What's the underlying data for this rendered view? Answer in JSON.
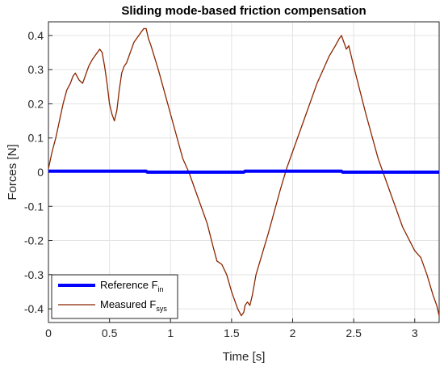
{
  "chart_data": {
    "type": "line",
    "title": "Sliding mode-based friction compensation",
    "xlabel": "Time [s]",
    "ylabel": "Forces [N]",
    "xlim": [
      0,
      3.2
    ],
    "ylim": [
      -0.44,
      0.44
    ],
    "x_ticks": [
      0,
      0.5,
      1,
      1.5,
      2,
      2.5,
      3
    ],
    "x_tick_labels": [
      "0",
      "0.5",
      "1",
      "1.5",
      "2",
      "2.5",
      "3"
    ],
    "y_ticks": [
      -0.4,
      -0.3,
      -0.2,
      -0.1,
      0,
      0.1,
      0.2,
      0.3,
      0.4
    ],
    "y_tick_labels": [
      "-0.4",
      "-0.3",
      "-0.2",
      "-0.1",
      "0",
      "0.1",
      "0.2",
      "0.3",
      "0.4"
    ],
    "grid": true,
    "legend_position": "bottom-left",
    "series": [
      {
        "name": "Reference F",
        "name_sub": "in",
        "color": "#0000ff",
        "line_style": "thick",
        "x": [
          0,
          0.8,
          0.81,
          1.6,
          1.61,
          2.4,
          2.41,
          3.2
        ],
        "y": [
          0.003,
          0.003,
          0.0,
          0.0,
          0.003,
          0.003,
          0.0,
          0.0
        ]
      },
      {
        "name": "Measured F",
        "name_sub": "sys",
        "color": "#8b2500",
        "line_style": "thin",
        "x": [
          0,
          0.03,
          0.06,
          0.09,
          0.12,
          0.15,
          0.18,
          0.2,
          0.22,
          0.25,
          0.28,
          0.3,
          0.33,
          0.36,
          0.4,
          0.42,
          0.44,
          0.46,
          0.48,
          0.5,
          0.52,
          0.54,
          0.56,
          0.58,
          0.6,
          0.62,
          0.64,
          0.66,
          0.68,
          0.7,
          0.72,
          0.74,
          0.76,
          0.78,
          0.8,
          0.82,
          0.84,
          0.9,
          1.0,
          1.1,
          1.15,
          1.2,
          1.3,
          1.35,
          1.38,
          1.42,
          1.46,
          1.5,
          1.55,
          1.58,
          1.6,
          1.61,
          1.63,
          1.65,
          1.67,
          1.7,
          1.8,
          1.9,
          1.95,
          2.0,
          2.1,
          2.2,
          2.3,
          2.35,
          2.38,
          2.4,
          2.42,
          2.44,
          2.46,
          2.5,
          2.6,
          2.7,
          2.75,
          2.8,
          2.9,
          3.0,
          3.05,
          3.1,
          3.15,
          3.18,
          3.2
        ],
        "y": [
          0.01,
          0.06,
          0.1,
          0.15,
          0.2,
          0.24,
          0.26,
          0.28,
          0.29,
          0.27,
          0.26,
          0.28,
          0.31,
          0.33,
          0.35,
          0.36,
          0.35,
          0.31,
          0.26,
          0.2,
          0.17,
          0.15,
          0.18,
          0.24,
          0.29,
          0.31,
          0.32,
          0.34,
          0.36,
          0.38,
          0.39,
          0.4,
          0.41,
          0.42,
          0.42,
          0.39,
          0.37,
          0.3,
          0.17,
          0.04,
          0.0,
          -0.05,
          -0.15,
          -0.22,
          -0.26,
          -0.27,
          -0.3,
          -0.35,
          -0.4,
          -0.42,
          -0.41,
          -0.39,
          -0.38,
          -0.39,
          -0.36,
          -0.3,
          -0.18,
          -0.05,
          0.01,
          0.06,
          0.16,
          0.26,
          0.34,
          0.37,
          0.39,
          0.4,
          0.38,
          0.36,
          0.37,
          0.31,
          0.17,
          0.04,
          -0.01,
          -0.06,
          -0.16,
          -0.23,
          -0.25,
          -0.3,
          -0.36,
          -0.39,
          -0.42
        ]
      }
    ]
  }
}
